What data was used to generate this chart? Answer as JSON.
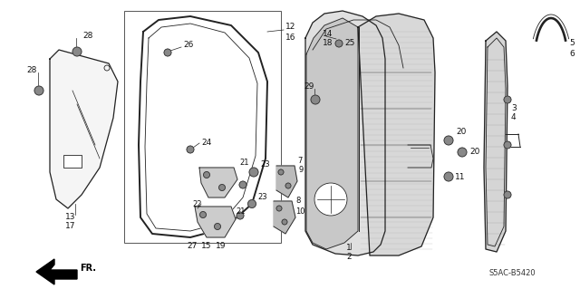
{
  "bg_color": "#ffffff",
  "col": "#222222",
  "code_label": "S5AC-B5420"
}
